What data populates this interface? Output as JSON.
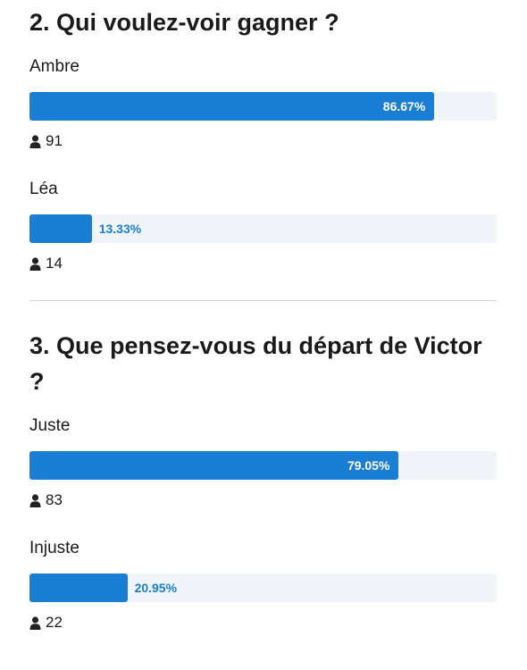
{
  "polls": [
    {
      "title": "2. Qui voulez-voir gagner ?",
      "options": [
        {
          "label": "Ambre",
          "percent": 86.67,
          "percent_label": "86.67%",
          "votes": 91
        },
        {
          "label": "Léa",
          "percent": 13.33,
          "percent_label": "13.33%",
          "votes": 14
        }
      ]
    },
    {
      "title": "3. Que pensez-vous du départ de Victor ?",
      "options": [
        {
          "label": "Juste",
          "percent": 79.05,
          "percent_label": "79.05%",
          "votes": 83
        },
        {
          "label": "Injuste",
          "percent": 20.95,
          "percent_label": "20.95%",
          "votes": 22
        }
      ]
    }
  ]
}
